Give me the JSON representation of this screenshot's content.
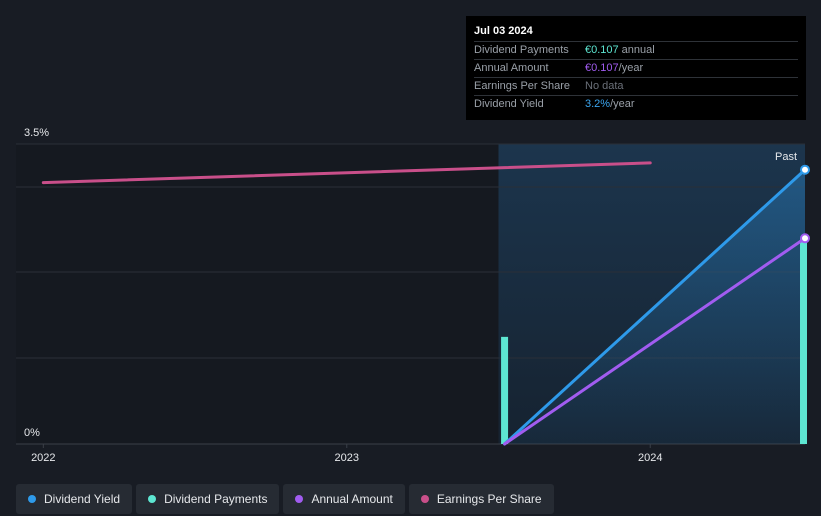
{
  "tooltip": {
    "date": "Jul 03 2024",
    "rows": [
      {
        "label": "Dividend Payments",
        "value": "€0.107",
        "unit": "annual",
        "color": "#5de6d2"
      },
      {
        "label": "Annual Amount",
        "value": "€0.107",
        "unit": "/year",
        "color": "#a15cf0"
      },
      {
        "label": "Earnings Per Share",
        "value": "No data",
        "unit": "",
        "color": "#6b7079"
      },
      {
        "label": "Dividend Yield",
        "value": "3.2%",
        "unit": "/year",
        "color": "#3ba5ee"
      }
    ]
  },
  "legend": [
    {
      "label": "Dividend Yield",
      "color": "#2e9aea"
    },
    {
      "label": "Dividend Payments",
      "color": "#5de6d2"
    },
    {
      "label": "Annual Amount",
      "color": "#a15cf0"
    },
    {
      "label": "Earnings Per Share",
      "color": "#c94f8a"
    }
  ],
  "chart_data": {
    "type": "line",
    "y_tick_labels": [
      "0%",
      "3.5%"
    ],
    "ylim": [
      0,
      3.5
    ],
    "x_tick_labels": [
      "2022",
      "2023",
      "2024"
    ],
    "xlim": [
      2021.91,
      2024.51
    ],
    "region_label": "Past",
    "region_start": 2023.5,
    "grid": true,
    "series": [
      {
        "name": "Dividend Yield",
        "color": "#2e9aea",
        "x": [
          2023.52,
          2024.51
        ],
        "y": [
          0,
          3.2
        ],
        "end_marker": true
      },
      {
        "name": "Annual Amount",
        "color": "#a15cf0",
        "x": [
          2023.52,
          2024.51
        ],
        "y": [
          0,
          2.4
        ],
        "end_marker": true
      },
      {
        "name": "Earnings Per Share",
        "color": "#c94f8a",
        "x": [
          2022.0,
          2024.0
        ],
        "y": [
          3.05,
          3.28
        ]
      }
    ],
    "bars": {
      "name": "Dividend Payments",
      "color": "#5de6d2",
      "x": [
        2023.52,
        2024.51
      ],
      "y": [
        1.25,
        2.4
      ]
    }
  }
}
